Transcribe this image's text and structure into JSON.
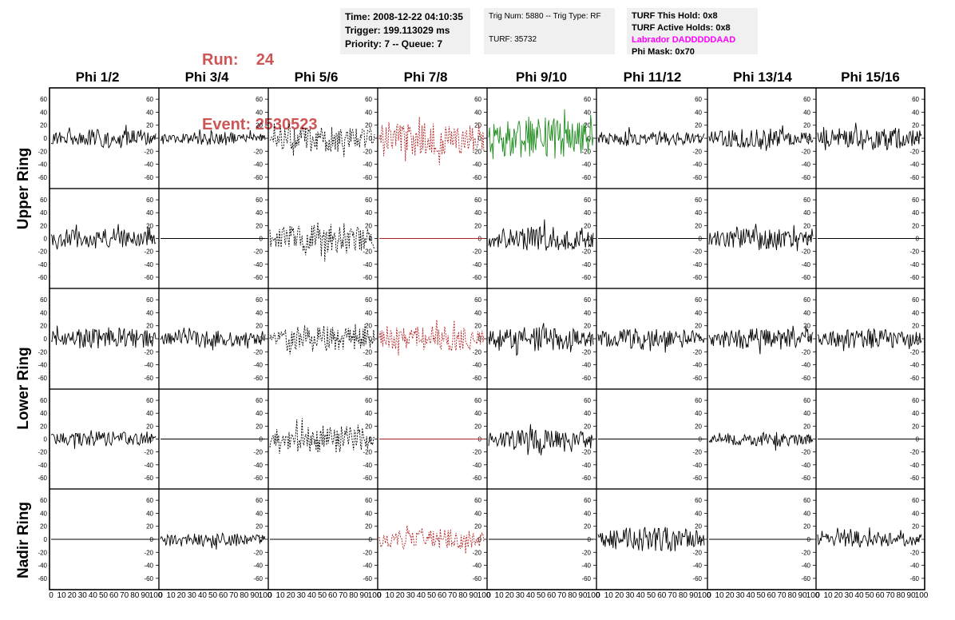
{
  "run_info": {
    "run_label": "Run:",
    "run_value": "24",
    "event_label": "Event:",
    "event_value": "2530523"
  },
  "info_box_1": {
    "line1": "Time: 2008-12-22 04:10:35",
    "line2": "Trigger: 199.113029 ms",
    "line3": "Priority: 7 -- Queue: 7"
  },
  "info_box_2": {
    "line1": "Trig Num: 5880 -- Trig Type: RF",
    "line2": "TURF: 35732"
  },
  "info_box_3": {
    "line1": "TURF This Hold: 0x8",
    "line2": "TURF Active Holds: 0x8",
    "line3": "Labrador DADDDDDAAD",
    "line4": "Phi Mask: 0x70"
  },
  "columns": [
    "Phi 1/2",
    "Phi 3/4",
    "Phi 5/6",
    "Phi 7/8",
    "Phi 9/10",
    "Phi 11/12",
    "Phi 13/14",
    "Phi 15/16"
  ],
  "row_labels": [
    "Upper Ring",
    "Lower Ring",
    "Nadir Ring"
  ],
  "colors": {
    "black": "#000000",
    "red": "#b22222",
    "green": "#1e8c1e",
    "run_text": "#cc5555",
    "labrador": "#ff00ff"
  },
  "chart_data": {
    "type": "line",
    "description_units": "waveform amplitude vs sample index",
    "x_ticks": [
      "0",
      "10",
      "20",
      "30",
      "40",
      "50",
      "60",
      "70",
      "80",
      "90",
      "100"
    ],
    "y_ticks": [
      "-60",
      "-40",
      "-20",
      "0",
      "20",
      "40",
      "60"
    ],
    "xlim": [
      0,
      100
    ],
    "ylim": [
      -70,
      70
    ],
    "panel_rows": 5,
    "panel_cols": 8,
    "panels": [
      {
        "row": 0,
        "col": 0,
        "amp": 14,
        "color": "black",
        "dashed": false
      },
      {
        "row": 0,
        "col": 1,
        "amp": 10,
        "color": "black",
        "dashed": false
      },
      {
        "row": 0,
        "col": 2,
        "amp": 22,
        "color": "black",
        "dashed": true
      },
      {
        "row": 0,
        "col": 3,
        "amp": 26,
        "color": "red",
        "dashed": true
      },
      {
        "row": 0,
        "col": 4,
        "amp": 34,
        "color": "green",
        "dashed": false
      },
      {
        "row": 0,
        "col": 5,
        "amp": 12,
        "color": "black",
        "dashed": false
      },
      {
        "row": 0,
        "col": 6,
        "amp": 15,
        "color": "black",
        "dashed": false
      },
      {
        "row": 0,
        "col": 7,
        "amp": 18,
        "color": "black",
        "dashed": false
      },
      {
        "row": 1,
        "col": 0,
        "amp": 16,
        "color": "black",
        "dashed": false
      },
      {
        "row": 1,
        "col": 1,
        "amp": 0,
        "color": "black",
        "dashed": false
      },
      {
        "row": 1,
        "col": 2,
        "amp": 24,
        "color": "black",
        "dashed": true
      },
      {
        "row": 1,
        "col": 3,
        "amp": 0,
        "color": "red",
        "dashed": false
      },
      {
        "row": 1,
        "col": 4,
        "amp": 20,
        "color": "black",
        "dashed": false
      },
      {
        "row": 1,
        "col": 5,
        "amp": 0,
        "color": "black",
        "dashed": false
      },
      {
        "row": 1,
        "col": 6,
        "amp": 16,
        "color": "black",
        "dashed": false
      },
      {
        "row": 1,
        "col": 7,
        "amp": 0,
        "color": "black",
        "dashed": false
      },
      {
        "row": 2,
        "col": 0,
        "amp": 18,
        "color": "black",
        "dashed": false
      },
      {
        "row": 2,
        "col": 1,
        "amp": 13,
        "color": "black",
        "dashed": false
      },
      {
        "row": 2,
        "col": 2,
        "amp": 20,
        "color": "black",
        "dashed": true
      },
      {
        "row": 2,
        "col": 3,
        "amp": 20,
        "color": "red",
        "dashed": true
      },
      {
        "row": 2,
        "col": 4,
        "amp": 19,
        "color": "black",
        "dashed": false
      },
      {
        "row": 2,
        "col": 5,
        "amp": 17,
        "color": "black",
        "dashed": false
      },
      {
        "row": 2,
        "col": 6,
        "amp": 17,
        "color": "black",
        "dashed": false
      },
      {
        "row": 2,
        "col": 7,
        "amp": 15,
        "color": "black",
        "dashed": false
      },
      {
        "row": 3,
        "col": 0,
        "amp": 12,
        "color": "black",
        "dashed": false
      },
      {
        "row": 3,
        "col": 1,
        "amp": 0,
        "color": "black",
        "dashed": false
      },
      {
        "row": 3,
        "col": 2,
        "amp": 22,
        "color": "black",
        "dashed": true
      },
      {
        "row": 3,
        "col": 3,
        "amp": 0,
        "color": "red",
        "dashed": false
      },
      {
        "row": 3,
        "col": 4,
        "amp": 16,
        "color": "black",
        "dashed": false
      },
      {
        "row": 3,
        "col": 5,
        "amp": 0,
        "color": "black",
        "dashed": false
      },
      {
        "row": 3,
        "col": 6,
        "amp": 12,
        "color": "black",
        "dashed": false
      },
      {
        "row": 3,
        "col": 7,
        "amp": 0,
        "color": "black",
        "dashed": false
      },
      {
        "row": 4,
        "col": 0,
        "amp": 0,
        "color": "black",
        "dashed": false
      },
      {
        "row": 4,
        "col": 1,
        "amp": 10,
        "color": "black",
        "dashed": false
      },
      {
        "row": 4,
        "col": 2,
        "amp": 0,
        "color": "black",
        "dashed": false
      },
      {
        "row": 4,
        "col": 3,
        "amp": 17,
        "color": "red",
        "dashed": true
      },
      {
        "row": 4,
        "col": 4,
        "amp": 0,
        "color": "black",
        "dashed": false
      },
      {
        "row": 4,
        "col": 5,
        "amp": 20,
        "color": "black",
        "dashed": false
      },
      {
        "row": 4,
        "col": 6,
        "amp": 0,
        "color": "black",
        "dashed": false
      },
      {
        "row": 4,
        "col": 7,
        "amp": 13,
        "color": "black",
        "dashed": false
      }
    ]
  }
}
